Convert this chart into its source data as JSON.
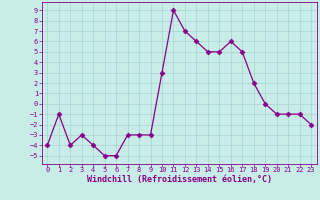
{
  "x": [
    0,
    1,
    2,
    3,
    4,
    5,
    6,
    7,
    8,
    9,
    10,
    11,
    12,
    13,
    14,
    15,
    16,
    17,
    18,
    19,
    20,
    21,
    22,
    23
  ],
  "y": [
    -4,
    -1,
    -4,
    -3,
    -4,
    -5,
    -5,
    -3,
    -3,
    -3,
    3,
    9,
    7,
    6,
    5,
    5,
    6,
    5,
    2,
    0,
    -1,
    -1,
    -1,
    -2
  ],
  "line_color": "#880088",
  "marker": "D",
  "bg_color": "#c8ece8",
  "grid_color": "#a8d4d0",
  "xlabel": "Windchill (Refroidissement éolien,°C)",
  "xlim": [
    -0.5,
    23.5
  ],
  "ylim": [
    -5.8,
    9.8
  ],
  "yticks": [
    -5,
    -4,
    -3,
    -2,
    -1,
    0,
    1,
    2,
    3,
    4,
    5,
    6,
    7,
    8,
    9
  ],
  "xticks": [
    0,
    1,
    2,
    3,
    4,
    5,
    6,
    7,
    8,
    9,
    10,
    11,
    12,
    13,
    14,
    15,
    16,
    17,
    18,
    19,
    20,
    21,
    22,
    23
  ],
  "tick_fontsize": 5.0,
  "xlabel_fontsize": 6.0,
  "line_width": 0.9,
  "marker_size": 2.5
}
